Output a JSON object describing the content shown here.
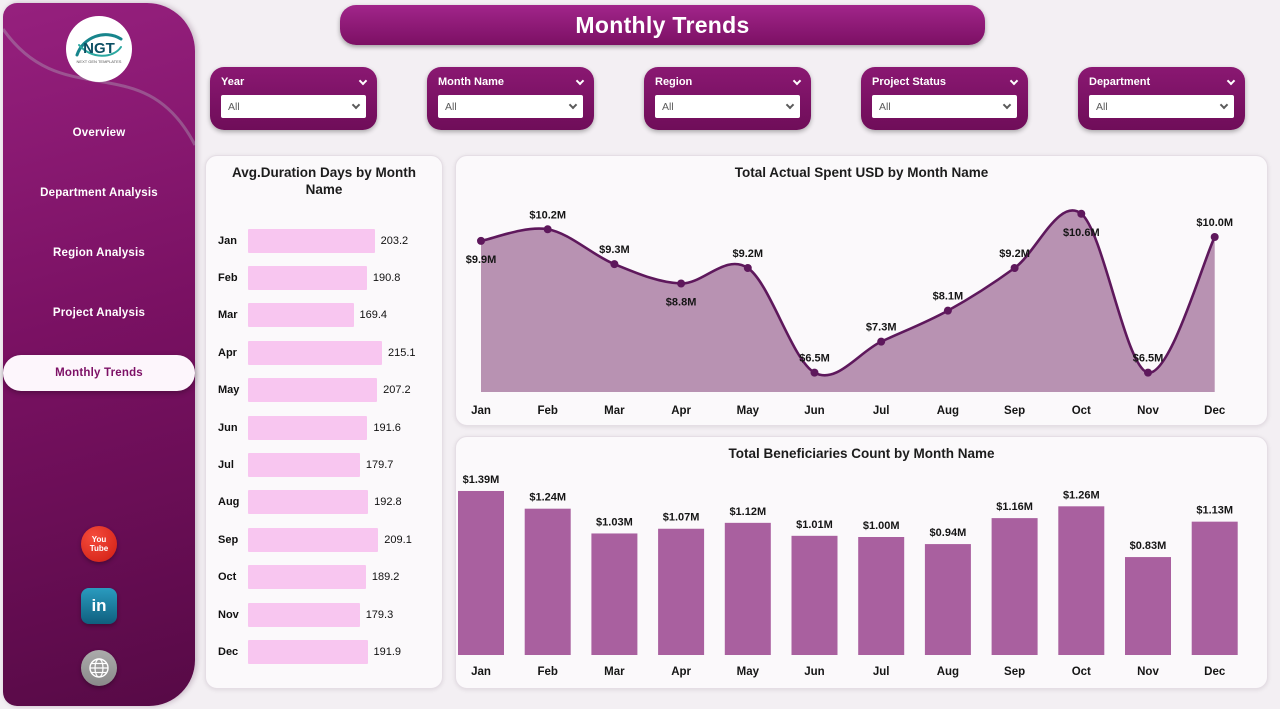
{
  "app": {
    "title": "Monthly Trends"
  },
  "sidebar": {
    "logo": {
      "text": "NGT",
      "subtext": "NEXT GEN TEMPLATES"
    },
    "items": [
      {
        "label": "Overview",
        "active": false
      },
      {
        "label": "Department Analysis",
        "active": false
      },
      {
        "label": "Region Analysis",
        "active": false
      },
      {
        "label": "Project Analysis",
        "active": false
      },
      {
        "label": "Monthly Trends",
        "active": true
      }
    ],
    "social": [
      {
        "name": "youtube",
        "lines": [
          "You",
          "Tube"
        ]
      },
      {
        "name": "linkedin",
        "label": "in"
      },
      {
        "name": "globe"
      }
    ]
  },
  "filters": [
    {
      "label": "Year",
      "value": "All"
    },
    {
      "label": "Month Name",
      "value": "All"
    },
    {
      "label": "Region",
      "value": "All"
    },
    {
      "label": "Project Status",
      "value": "All"
    },
    {
      "label": "Department",
      "value": "All"
    }
  ],
  "colors": {
    "banner": "#8d1773",
    "filter_card": "#7d1066",
    "pink_bar": "#f8c6f0",
    "area_fill": "#b48cae",
    "line": "#5e185c",
    "purple_bar": "#a9609f",
    "label_text": "#151515"
  },
  "chart_data": [
    {
      "type": "bar",
      "orientation": "horizontal",
      "title": "Avg.Duration Days by Month Name",
      "categories": [
        "Jan",
        "Feb",
        "Mar",
        "Apr",
        "May",
        "Jun",
        "Jul",
        "Aug",
        "Sep",
        "Oct",
        "Nov",
        "Dec"
      ],
      "values": [
        203.2,
        190.8,
        169.4,
        215.1,
        207.2,
        191.6,
        179.7,
        192.8,
        209.1,
        189.2,
        179.3,
        191.9
      ],
      "xlabel": "",
      "ylabel": "",
      "xlim": [
        0,
        215.1
      ],
      "grid": false,
      "legend": false
    },
    {
      "type": "area",
      "title": "Total Actual Spent USD by Month Name",
      "categories": [
        "Jan",
        "Feb",
        "Mar",
        "Apr",
        "May",
        "Jun",
        "Jul",
        "Aug",
        "Sep",
        "Oct",
        "Nov",
        "Dec"
      ],
      "values": [
        9.9,
        10.2,
        9.3,
        8.8,
        9.2,
        6.5,
        7.3,
        8.1,
        9.2,
        10.6,
        6.5,
        10.0
      ],
      "labels": [
        "$9.9M",
        "$10.2M",
        "$9.3M",
        "$8.8M",
        "$9.2M",
        "$6.5M",
        "$7.3M",
        "$8.1M",
        "$9.2M",
        "$10.6M",
        "$6.5M",
        "$10.0M"
      ],
      "xlabel": "",
      "ylabel": "",
      "ylim": [
        6.0,
        10.8
      ],
      "grid": false,
      "legend": false
    },
    {
      "type": "bar",
      "title": "Total Beneficiaries Count by Month Name",
      "categories": [
        "Jan",
        "Feb",
        "Mar",
        "Apr",
        "May",
        "Jun",
        "Jul",
        "Aug",
        "Sep",
        "Oct",
        "Nov",
        "Dec"
      ],
      "values": [
        1.39,
        1.24,
        1.03,
        1.07,
        1.12,
        1.01,
        1.0,
        0.94,
        1.16,
        1.26,
        0.83,
        1.13
      ],
      "labels": [
        "$1.39M",
        "$1.24M",
        "$1.03M",
        "$1.07M",
        "$1.12M",
        "$1.01M",
        "$1.00M",
        "$0.94M",
        "$1.16M",
        "$1.26M",
        "$0.83M",
        "$1.13M"
      ],
      "xlabel": "",
      "ylabel": "",
      "ylim": [
        0,
        1.5
      ],
      "grid": false,
      "legend": false
    }
  ]
}
